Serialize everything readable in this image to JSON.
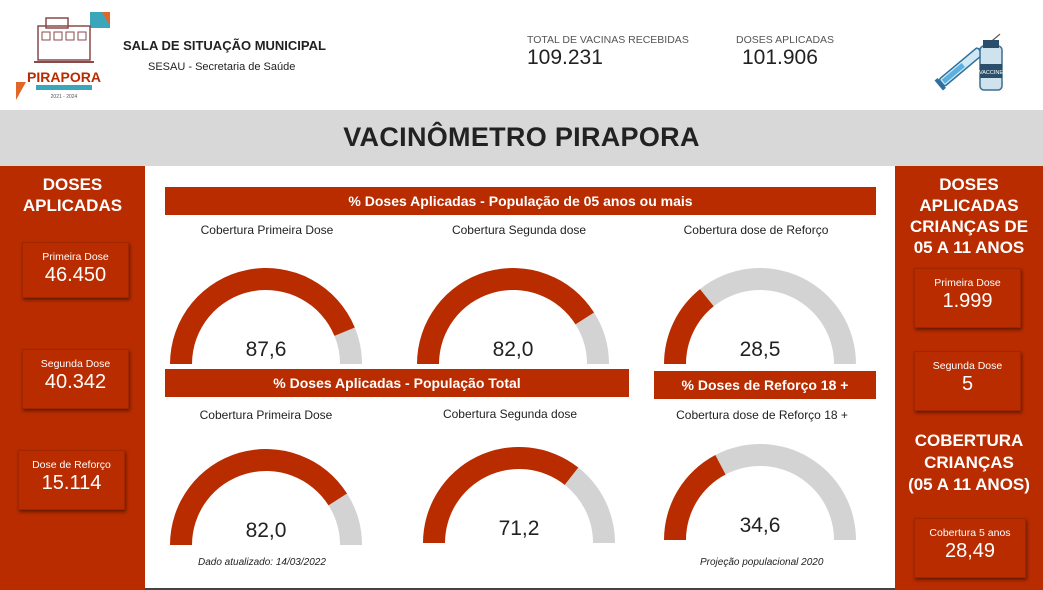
{
  "header": {
    "org_title": "SALA DE SITUAÇÃO MUNICIPAL",
    "org_subtitle": "SESAU - Secretaria de Saúde",
    "logo_text": "PIRAPORA",
    "logo_years": "2021 - 2024",
    "kpis": [
      {
        "label": "TOTAL DE VACINAS RECEBIDAS",
        "value": "109.231"
      },
      {
        "label": "DOSES APLICADAS",
        "value": "101.906"
      }
    ],
    "vaccine_label": "VACCINE"
  },
  "title": "VACINÔMETRO PIRAPORA",
  "left_panel": {
    "title_line1": "DOSES",
    "title_line2": "APLICADAS",
    "cards": [
      {
        "label": "Primeira Dose",
        "value": "46.450"
      },
      {
        "label": "Segunda Dose",
        "value": "40.342"
      },
      {
        "label": "Dose de Reforço",
        "value": "15.114"
      }
    ]
  },
  "right_panel": {
    "title_lines": [
      "DOSES",
      "APLICADAS",
      "CRIANÇAS DE",
      "05 A 11 ANOS"
    ],
    "cards": [
      {
        "label": "Primeira Dose",
        "value": "1.999"
      },
      {
        "label": "Segunda Dose",
        "value": "5"
      }
    ],
    "coverage_title_lines": [
      "COBERTURA",
      "CRIANÇAS",
      "(05 A 11 ANOS)"
    ],
    "coverage_card": {
      "label": "Cobertura 5 anos",
      "value": "28,49"
    }
  },
  "sections": {
    "pop5": "% Doses Aplicadas - População de 05 anos ou mais",
    "total": "% Doses Aplicadas - População Total",
    "reforco18": "% Doses de Reforço 18 +"
  },
  "notes": {
    "updated": "Dado atualizado: 14/03/2022",
    "projection": "Projeção populacional 2020"
  },
  "colors": {
    "accent": "#b82c00",
    "track": "#d3d3d3"
  },
  "chart_data": [
    {
      "type": "gauge",
      "title": "Cobertura Primeira Dose",
      "value": 87.6,
      "label": "87,6",
      "range": [
        0,
        100
      ]
    },
    {
      "type": "gauge",
      "title": "Cobertura Segunda dose",
      "value": 82.0,
      "label": "82,0",
      "range": [
        0,
        100
      ]
    },
    {
      "type": "gauge",
      "title": "Cobertura dose de Reforço",
      "value": 28.5,
      "label": "28,5",
      "range": [
        0,
        100
      ]
    },
    {
      "type": "gauge",
      "title": "Cobertura Primeira Dose",
      "value": 82.0,
      "label": "82,0",
      "range": [
        0,
        100
      ]
    },
    {
      "type": "gauge",
      "title": "Cobertura Segunda dose",
      "value": 71.2,
      "label": "71,2",
      "range": [
        0,
        100
      ]
    },
    {
      "type": "gauge",
      "title": "Cobertura dose de Reforço 18 +",
      "value": 34.6,
      "label": "34,6",
      "range": [
        0,
        100
      ]
    }
  ]
}
